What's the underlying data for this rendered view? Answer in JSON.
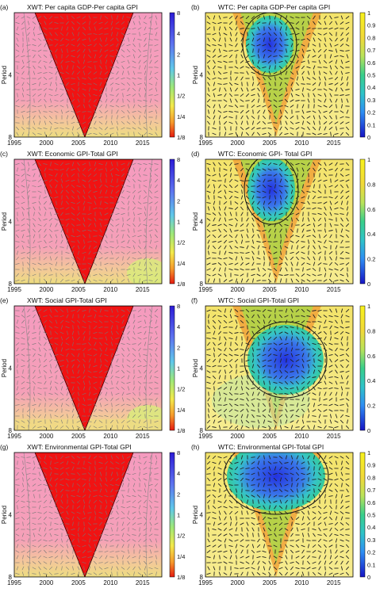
{
  "figure": {
    "panels": [
      {
        "label": "(a)",
        "title": "XWT: Per capita GDP-Per capita GPI",
        "kind": "xwt"
      },
      {
        "label": "(b)",
        "title": "WTC: Per capita GDP-Per capita GPI",
        "kind": "wtc"
      },
      {
        "label": "(c)",
        "title": "XWT: Economic GPI-Total GPI",
        "kind": "xwt"
      },
      {
        "label": "(d)",
        "title": "WTC: Economic GPI- Total GPI",
        "kind": "wtc"
      },
      {
        "label": "(e)",
        "title": "XWT: Social GPI-Total GPI",
        "kind": "xwt"
      },
      {
        "label": "(f)",
        "title": "WTC: Social GPI-Total GPI",
        "kind": "wtc"
      },
      {
        "label": "(g)",
        "title": "XWT: Environmental GPI-Total GPI",
        "kind": "xwt"
      },
      {
        "label": "(h)",
        "title": "WTC: Environmental GPI-Total GPI",
        "kind": "wtc"
      }
    ],
    "ylabel": "Period",
    "x_ticks": [
      "1995",
      "2000",
      "2005",
      "2010",
      "2015"
    ],
    "y_ticks": [
      "4",
      "8"
    ],
    "xwt_colorbar_ticks": [
      "8",
      "4",
      "2",
      "1",
      "1/2",
      "1/4",
      "1/8"
    ],
    "wtc_colorbar_ticks": [
      "1",
      "0.9",
      "0.8",
      "0.7",
      "0.6",
      "0.5",
      "0.4",
      "0.3",
      "0.2",
      "0.1",
      "0"
    ],
    "wtc_colorbar_ticks_short": [
      "1",
      "0.8",
      "0.6",
      "0.4",
      "0.2",
      "0"
    ]
  },
  "chart_data": [
    {
      "type": "heatmap",
      "panel": "(a)",
      "title": "XWT: Per capita GDP-Per capita GPI",
      "ylabel": "Period",
      "xlim": [
        1995,
        2018
      ],
      "ylim": [
        8,
        1.8
      ],
      "colorscale": "log2 power",
      "clim": [
        "1/8",
        "8"
      ],
      "cone_apex_year": 2006
    },
    {
      "type": "heatmap",
      "panel": "(b)",
      "title": "WTC: Per capita GDP-Per capita GPI",
      "ylabel": "Period",
      "xlim": [
        1995,
        2018
      ],
      "ylim": [
        8,
        1.8
      ],
      "clim": [
        0,
        1
      ],
      "high_coherence_center": [
        2005,
        2.3
      ]
    },
    {
      "type": "heatmap",
      "panel": "(c)",
      "title": "XWT: Economic GPI-Total GPI",
      "ylabel": "Period",
      "xlim": [
        1995,
        2018
      ],
      "ylim": [
        8,
        1.8
      ],
      "colorscale": "log2 power",
      "clim": [
        "1/8",
        "8"
      ],
      "cone_apex_year": 2006
    },
    {
      "type": "heatmap",
      "panel": "(d)",
      "title": "WTC: Economic GPI- Total GPI",
      "ylabel": "Period",
      "xlim": [
        1995,
        2018
      ],
      "ylim": [
        8,
        1.8
      ],
      "clim": [
        0,
        1
      ],
      "high_coherence_center": [
        2005,
        2.4
      ]
    },
    {
      "type": "heatmap",
      "panel": "(e)",
      "title": "XWT: Social GPI-Total GPI",
      "ylabel": "Period",
      "xlim": [
        1995,
        2018
      ],
      "ylim": [
        8,
        1.8
      ],
      "colorscale": "log2 power",
      "clim": [
        "1/8",
        "8"
      ],
      "cone_apex_year": 2006
    },
    {
      "type": "heatmap",
      "panel": "(f)",
      "title": "WTC: Social GPI-Total GPI",
      "ylabel": "Period",
      "xlim": [
        1995,
        2018
      ],
      "ylim": [
        8,
        1.8
      ],
      "clim": [
        0,
        1
      ],
      "high_coherence_center": [
        2007,
        3.2
      ]
    },
    {
      "type": "heatmap",
      "panel": "(g)",
      "title": "XWT: Environmental GPI-Total GPI",
      "ylabel": "Period",
      "xlim": [
        1995,
        2018
      ],
      "ylim": [
        8,
        1.8
      ],
      "colorscale": "log2 power",
      "clim": [
        "1/8",
        "8"
      ],
      "cone_apex_year": 2006
    },
    {
      "type": "heatmap",
      "panel": "(h)",
      "title": "WTC: Environmental GPI-Total GPI",
      "ylabel": "Period",
      "xlim": [
        1995,
        2018
      ],
      "ylim": [
        8,
        1.8
      ],
      "clim": [
        0,
        1
      ],
      "high_coherence_center": [
        2006,
        2.3
      ]
    }
  ]
}
